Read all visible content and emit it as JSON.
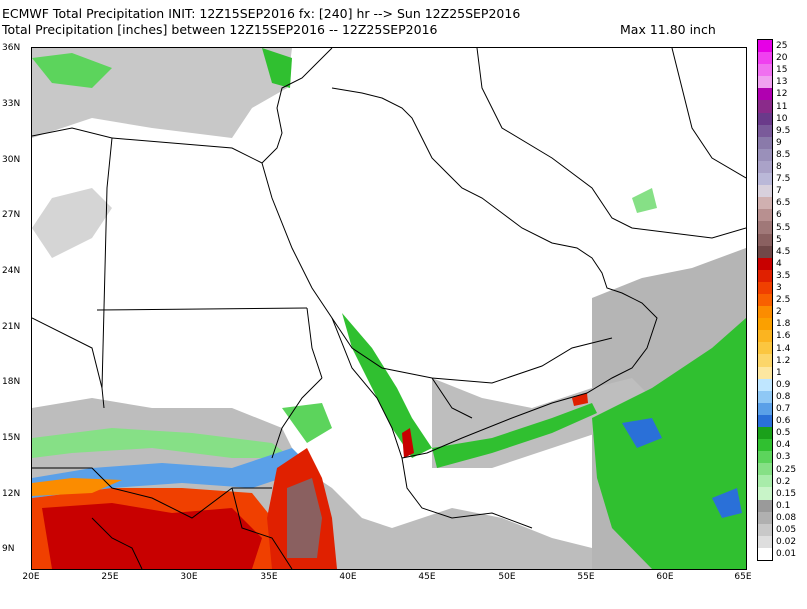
{
  "header": {
    "line1": "ECMWF Total Precipitation INIT: 12Z15SEP2016 fx: [240] hr --> Sun 12Z25SEP2016",
    "line2": "Total Precipitation [inches] between 12Z15SEP2016 -- 12Z25SEP2016",
    "max_label": "Max 11.80 inch"
  },
  "axes": {
    "lat_ticks": [
      "36N",
      "33N",
      "30N",
      "27N",
      "24N",
      "21N",
      "18N",
      "15N",
      "12N",
      "9N"
    ],
    "lon_ticks": [
      "20E",
      "25E",
      "30E",
      "35E",
      "40E",
      "45E",
      "50E",
      "55E",
      "60E",
      "65E"
    ]
  },
  "colorbar": {
    "levels": [
      "25",
      "20",
      "15",
      "13",
      "12",
      "11",
      "10",
      "9.5",
      "9",
      "8.5",
      "8",
      "7.5",
      "7",
      "6.5",
      "6",
      "5.5",
      "5",
      "4.5",
      "4",
      "3.5",
      "3",
      "2.5",
      "2",
      "1.8",
      "1.6",
      "1.4",
      "1.2",
      "1",
      "0.9",
      "0.8",
      "0.7",
      "0.6",
      "0.5",
      "0.4",
      "0.3",
      "0.25",
      "0.2",
      "0.15",
      "0.1",
      "0.08",
      "0.05",
      "0.02",
      "0.01"
    ],
    "colors": [
      "#e600e6",
      "#f040f0",
      "#f070f0",
      "#f0a0f0",
      "#b000b0",
      "#8a2b8a",
      "#6a3a8a",
      "#7a5a9a",
      "#8a7aaa",
      "#9a90ba",
      "#aaa2c8",
      "#bab8d8",
      "#d8d0dc",
      "#d0b0b0",
      "#b89090",
      "#a07878",
      "#8a6060",
      "#704848",
      "#c80000",
      "#e02000",
      "#f04000",
      "#f86000",
      "#fb8c00",
      "#fba000",
      "#fbb420",
      "#fbc640",
      "#fcd66a",
      "#fde7a0",
      "#bfe6ff",
      "#8fc8f5",
      "#5aa0e8",
      "#2a70d8",
      "#1aa01a",
      "#30c030",
      "#5cd45c",
      "#86e086",
      "#a8ecaa",
      "#c8f4c8",
      "#9a9a9a",
      "#b0b0b0",
      "#c8c8c8",
      "#dedede",
      "#ffffff"
    ]
  }
}
